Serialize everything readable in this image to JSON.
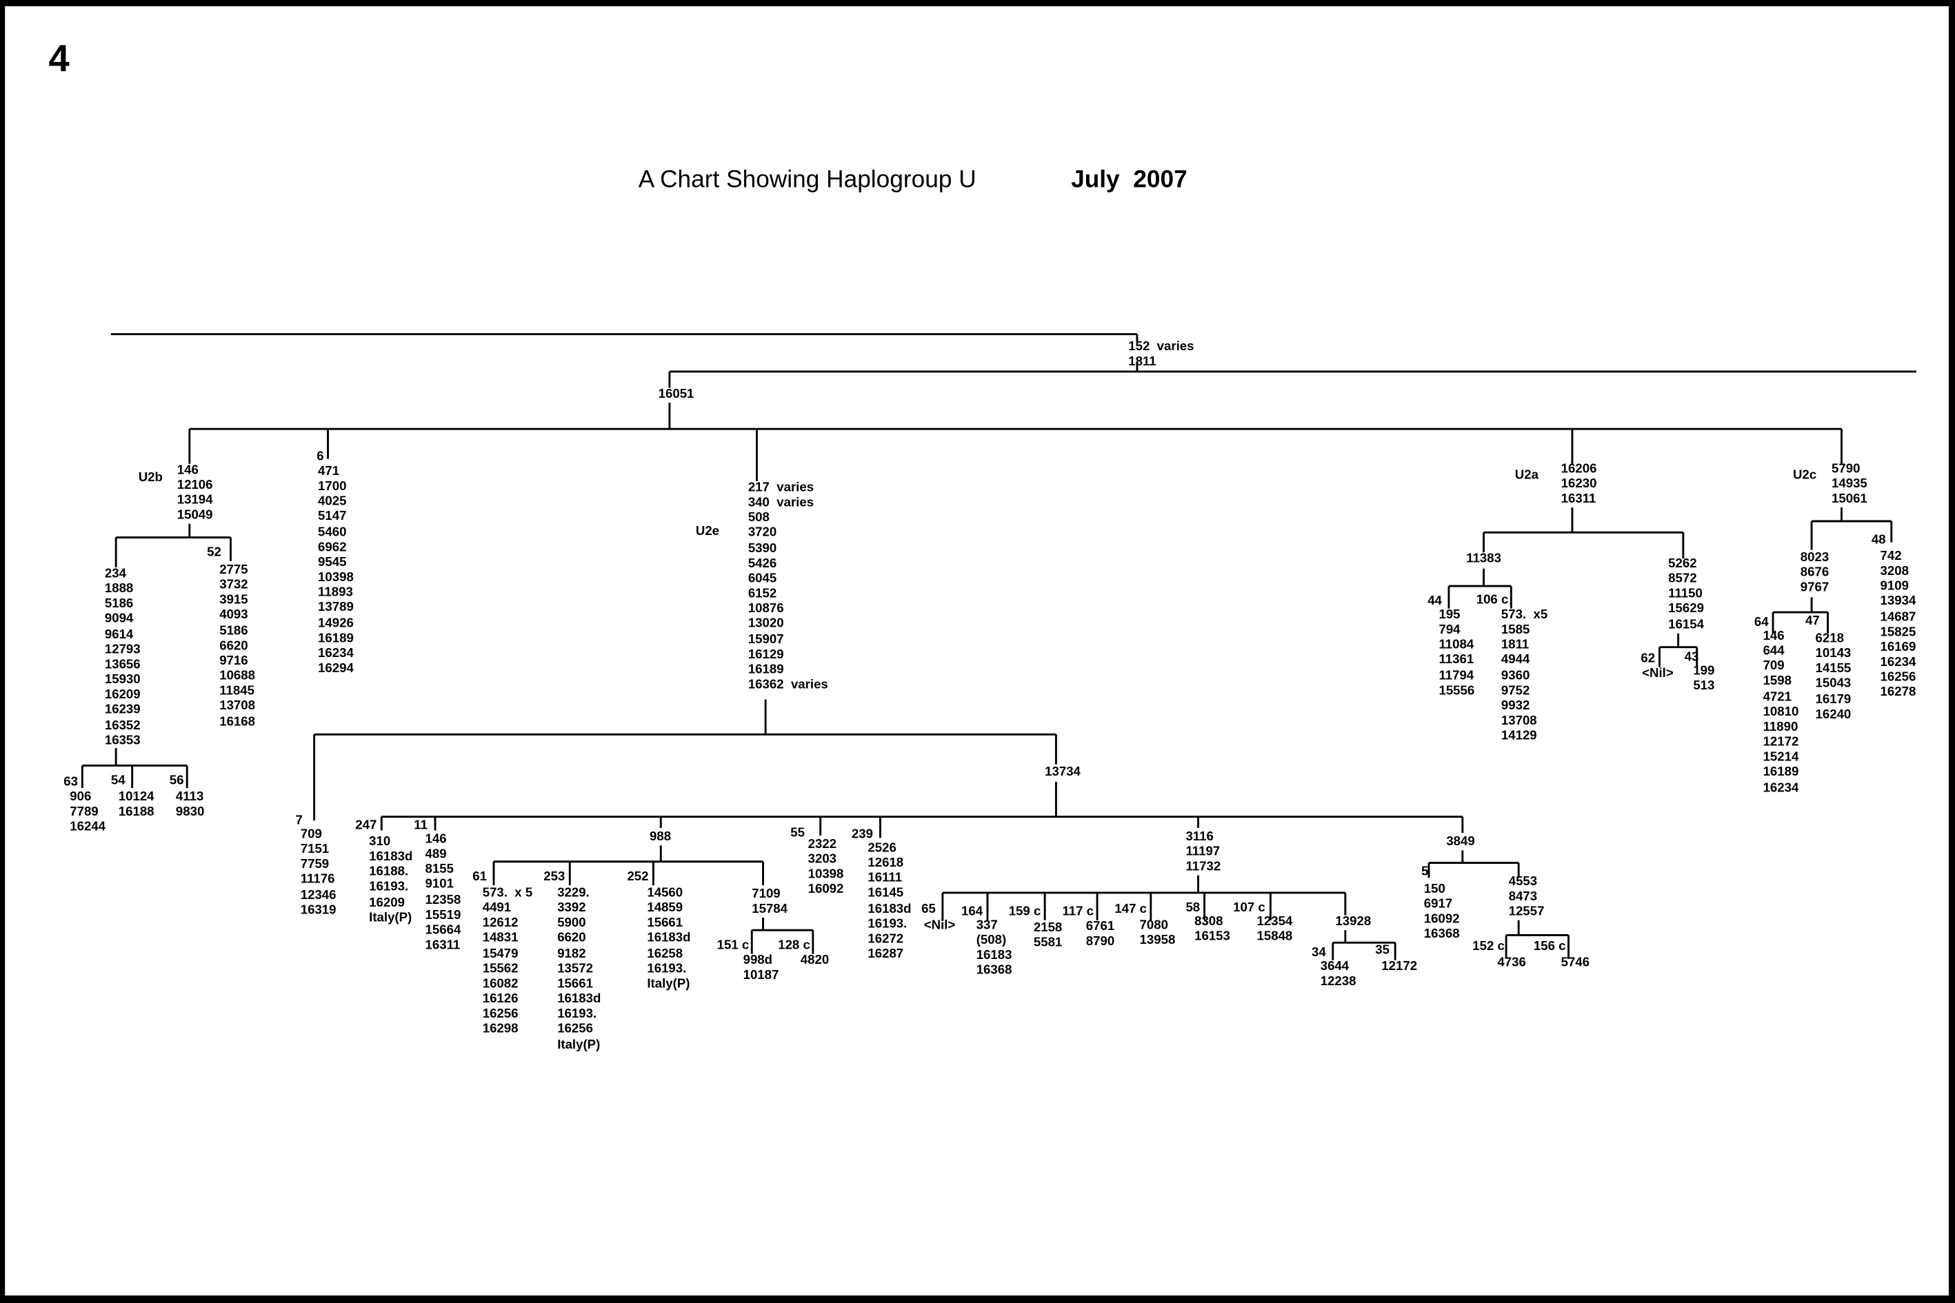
{
  "page_number": "4",
  "title": "A Chart Showing Haplogroup U",
  "date": "July  2007",
  "nodes": [
    {
      "name": "root",
      "text": "152  varies\n1811"
    },
    {
      "name": "u2",
      "text": "16051"
    },
    {
      "name": "u2b-label",
      "text": "U2b"
    },
    {
      "name": "u2b",
      "text": "146\n12106\n13194\n15049"
    },
    {
      "name": "u2b-a",
      "text": "234\n1888\n5186\n9094\n9614\n12793\n13656\n15930\n16209\n16239\n16352\n16353"
    },
    {
      "name": "u2b-52-label",
      "text": "52"
    },
    {
      "name": "u2b-52",
      "text": "2775\n3732\n3915\n4093\n5186\n6620\n9716\n10688\n11845\n13708\n16168"
    },
    {
      "name": "u2b-63-label",
      "text": "63"
    },
    {
      "name": "u2b-63",
      "text": "906\n7789\n16244"
    },
    {
      "name": "u2b-54-label",
      "text": "54"
    },
    {
      "name": "u2b-54",
      "text": "10124\n16188"
    },
    {
      "name": "u2b-56-label",
      "text": "56"
    },
    {
      "name": "u2b-56",
      "text": "4113\n9830"
    },
    {
      "name": "sample-6-label",
      "text": "6"
    },
    {
      "name": "sample-6",
      "text": "471\n1700\n4025\n5147\n5460\n6962\n9545\n10398\n11893\n13789\n14926\n16189\n16234\n16294"
    },
    {
      "name": "u2e-label",
      "text": "U2e"
    },
    {
      "name": "u2e",
      "text": "217  varies\n340  varies\n508\n3720\n5390\n5426\n6045\n6152\n10876\n13020\n15907\n16129\n16189\n16362  varies"
    },
    {
      "name": "sample-7-label",
      "text": "7"
    },
    {
      "name": "sample-7",
      "text": "709\n7151\n7759\n11176\n12346\n16319"
    },
    {
      "name": "u2e-13734",
      "text": "13734"
    },
    {
      "name": "sample-247-label",
      "text": "247"
    },
    {
      "name": "sample-247",
      "text": "310\n16183d\n16188.\n16193.\n16209\nItaly(P)"
    },
    {
      "name": "sample-11-label",
      "text": "11"
    },
    {
      "name": "sample-11",
      "text": "146\n489\n8155\n9101\n12358\n15519\n15664\n16311"
    },
    {
      "name": "u2e-988",
      "text": "988"
    },
    {
      "name": "sample-61-label",
      "text": "61"
    },
    {
      "name": "sample-61",
      "text": "573.  x 5\n4491\n12612\n14831\n15479\n15562\n16082\n16126\n16256\n16298"
    },
    {
      "name": "sample-253-label",
      "text": "253"
    },
    {
      "name": "sample-253",
      "text": "3229.\n3392\n5900\n6620\n9182\n13572\n15661\n16183d\n16193.\n16256\nItaly(P)"
    },
    {
      "name": "sample-252-label",
      "text": "252"
    },
    {
      "name": "sample-252",
      "text": "14560\n14859\n15661\n16183d\n16258\n16193.\nItaly(P)"
    },
    {
      "name": "u2e-7109",
      "text": "7109\n15784"
    },
    {
      "name": "sample-151c-label",
      "text": "151 c"
    },
    {
      "name": "sample-151c",
      "text": "998d\n10187"
    },
    {
      "name": "sample-128c-label",
      "text": "128 c"
    },
    {
      "name": "sample-128c",
      "text": "4820"
    },
    {
      "name": "sample-55-label",
      "text": "55"
    },
    {
      "name": "sample-55",
      "text": "2322\n3203\n10398\n16092"
    },
    {
      "name": "sample-239-label",
      "text": "239"
    },
    {
      "name": "sample-239",
      "text": "2526\n12618\n16111\n16145\n16183d\n16193.\n16272\n16287"
    },
    {
      "name": "u2e-3116",
      "text": "3116\n11197\n11732"
    },
    {
      "name": "sample-65-label",
      "text": "65"
    },
    {
      "name": "sample-65",
      "text": "<Nil>"
    },
    {
      "name": "sample-164-label",
      "text": "164"
    },
    {
      "name": "sample-164",
      "text": "337\n(508)\n16183\n16368"
    },
    {
      "name": "sample-159c-label",
      "text": "159 c"
    },
    {
      "name": "sample-159c",
      "text": "2158\n5581"
    },
    {
      "name": "sample-117c-label",
      "text": "117 c"
    },
    {
      "name": "sample-117c",
      "text": "6761\n8790"
    },
    {
      "name": "sample-147c-label",
      "text": "147 c"
    },
    {
      "name": "sample-147c",
      "text": "7080\n13958"
    },
    {
      "name": "sample-58-label",
      "text": "58"
    },
    {
      "name": "sample-58",
      "text": "8308\n16153"
    },
    {
      "name": "sample-107c-label",
      "text": "107 c"
    },
    {
      "name": "sample-107c",
      "text": "12354\n15848"
    },
    {
      "name": "u2e-13928",
      "text": "13928"
    },
    {
      "name": "sample-34-label",
      "text": "34"
    },
    {
      "name": "sample-34",
      "text": "3644\n12238"
    },
    {
      "name": "sample-35-label",
      "text": "35"
    },
    {
      "name": "sample-35",
      "text": "12172"
    },
    {
      "name": "u2e-3849",
      "text": "3849"
    },
    {
      "name": "sample-5-label",
      "text": "5"
    },
    {
      "name": "sample-5",
      "text": "150\n6917\n16092\n16368"
    },
    {
      "name": "u2e-4553",
      "text": "4553\n8473\n12557"
    },
    {
      "name": "sample-152c-label",
      "text": "152 c"
    },
    {
      "name": "sample-152c",
      "text": "4736"
    },
    {
      "name": "sample-156c-label",
      "text": "156 c"
    },
    {
      "name": "sample-156c",
      "text": "5746"
    },
    {
      "name": "u2a-label",
      "text": "U2a"
    },
    {
      "name": "u2a",
      "text": "16206\n16230\n16311"
    },
    {
      "name": "u2a-11383",
      "text": "11383"
    },
    {
      "name": "sample-44-label",
      "text": "44"
    },
    {
      "name": "sample-44",
      "text": "195\n794\n11084\n11361\n11794\n15556"
    },
    {
      "name": "sample-106c-label",
      "text": "106 c"
    },
    {
      "name": "sample-106c",
      "text": "573.  x5\n1585\n1811\n4944\n9360\n9752\n9932\n13708\n14129"
    },
    {
      "name": "u2a-5262",
      "text": "5262\n8572\n11150\n15629\n16154"
    },
    {
      "name": "sample-62-label",
      "text": "62"
    },
    {
      "name": "sample-62",
      "text": "<Nil>"
    },
    {
      "name": "sample-43-label",
      "text": "43"
    },
    {
      "name": "sample-43",
      "text": "199\n513"
    },
    {
      "name": "u2c-label",
      "text": "U2c"
    },
    {
      "name": "u2c",
      "text": "5790\n14935\n15061"
    },
    {
      "name": "u2c-8023",
      "text": "8023\n8676\n9767"
    },
    {
      "name": "sample-48-label",
      "text": "48"
    },
    {
      "name": "sample-48",
      "text": "742\n3208\n9109\n13934\n14687\n15825\n16169\n16234\n16256\n16278"
    },
    {
      "name": "sample-64-label",
      "text": "64"
    },
    {
      "name": "sample-64",
      "text": "146\n644\n709\n1598\n4721\n10810\n11890\n12172\n15214\n16189\n16234"
    },
    {
      "name": "sample-47-label",
      "text": "47"
    },
    {
      "name": "sample-47",
      "text": "6218\n10143\n14155\n15043\n16179\n16240"
    }
  ]
}
